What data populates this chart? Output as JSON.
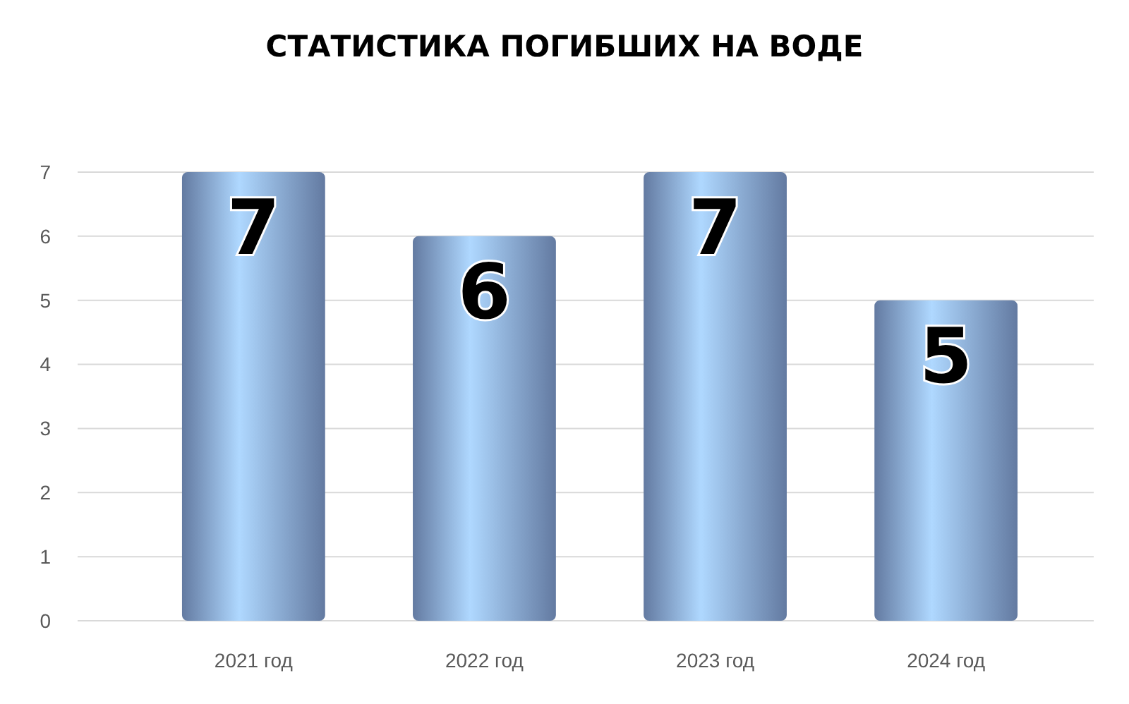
{
  "chart_data": {
    "type": "bar",
    "title": "СТАТИСТИКА ПОГИБШИХ НА ВОДЕ",
    "categories": [
      "2021 год",
      "2022 год",
      "2023 год",
      "2024 год"
    ],
    "values": [
      7,
      6,
      7,
      5
    ],
    "color": "#7f9dcf",
    "ylim": [
      0,
      7
    ],
    "yticks": [
      0,
      1,
      2,
      3,
      4,
      5,
      6,
      7
    ],
    "grid": true,
    "data_labels": true
  }
}
